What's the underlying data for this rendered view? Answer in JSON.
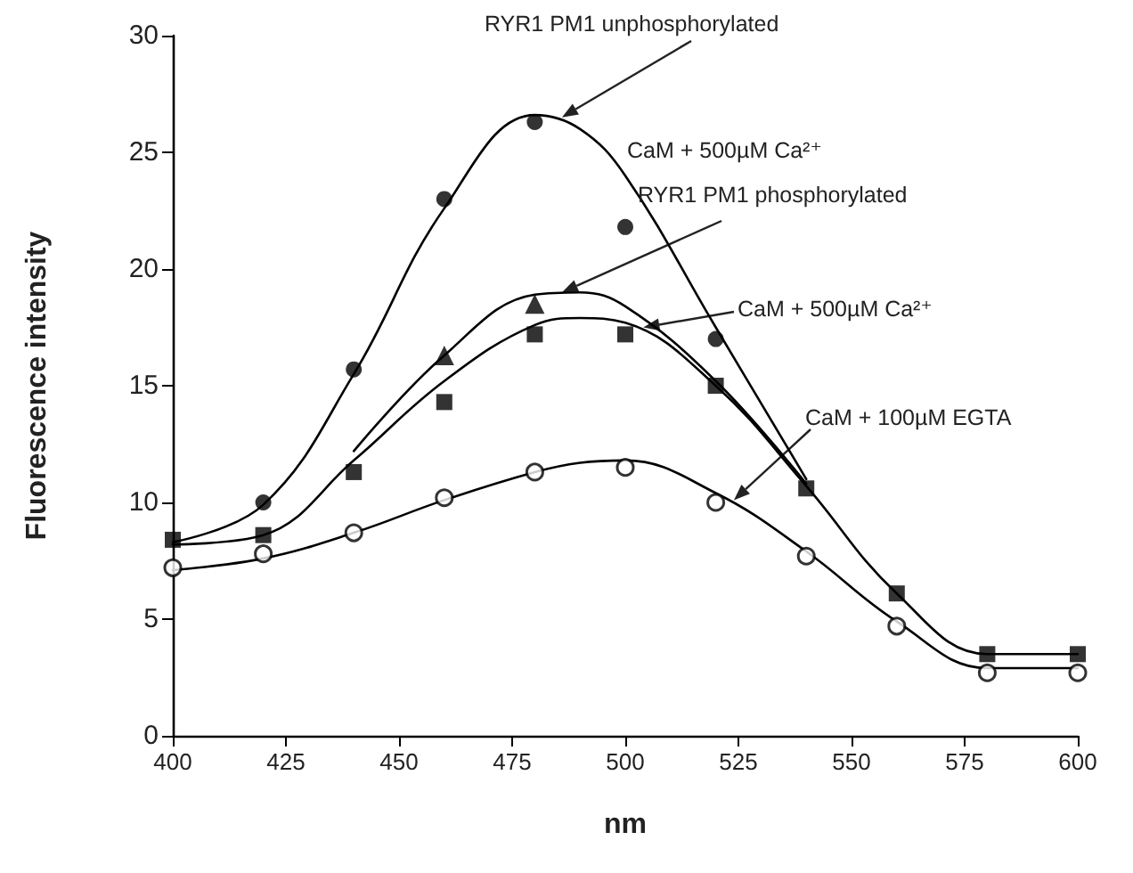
{
  "chart_data": {
    "type": "line",
    "xlabel": "nm",
    "ylabel": "Fluorescence intensity",
    "x": [
      400,
      420,
      440,
      460,
      480,
      500,
      520,
      540,
      560,
      580,
      600
    ],
    "xlim": [
      400,
      600
    ],
    "xticks": [
      400,
      425,
      450,
      475,
      500,
      525,
      550,
      575,
      600
    ],
    "ylim": [
      0,
      30
    ],
    "yticks": [
      0,
      5,
      10,
      15,
      20,
      25,
      30
    ],
    "grid": false,
    "series": [
      {
        "marker": "none",
        "color": "#000000",
        "x": [
          400,
          420,
          440,
          460,
          480,
          490,
          500,
          520,
          540
        ],
        "values": [
          8.3,
          9.9,
          15.5,
          22.6,
          26.6,
          26.0,
          24.0,
          17.5,
          11.0
        ]
      },
      {
        "marker": "none",
        "color": "#000000",
        "x": [
          440,
          460,
          480,
          490,
          500,
          520,
          540
        ],
        "values": [
          12.2,
          16.3,
          18.9,
          19.0,
          18.4,
          15.2,
          10.8
        ]
      },
      {
        "marker": "none",
        "color": "#000000",
        "x": [
          400,
          420,
          440,
          460,
          480,
          490,
          500,
          520,
          540,
          560,
          580,
          600
        ],
        "values": [
          8.2,
          8.6,
          11.8,
          15.2,
          17.6,
          17.9,
          17.7,
          15.0,
          10.7,
          6.1,
          3.5,
          3.5
        ]
      },
      {
        "marker": "none",
        "color": "#000000",
        "x": [
          400,
          420,
          440,
          460,
          480,
          490,
          500,
          520,
          540,
          560,
          580,
          600
        ],
        "values": [
          7.1,
          7.6,
          8.7,
          10.1,
          11.3,
          11.7,
          11.8,
          10.4,
          7.9,
          4.9,
          2.9,
          2.9
        ]
      },
      {
        "type": "scatter",
        "marker": "circle",
        "color": "#000000",
        "values": [
          null,
          10.0,
          15.7,
          23.0,
          26.3,
          21.8,
          17.0,
          null,
          null,
          null,
          null
        ]
      },
      {
        "type": "scatter",
        "marker": "triangle",
        "color": "#000000",
        "values": [
          null,
          null,
          null,
          16.3,
          18.5,
          null,
          null,
          null,
          null,
          null,
          null
        ]
      },
      {
        "type": "scatter",
        "marker": "square",
        "color": "#000000",
        "values": [
          8.4,
          8.6,
          11.3,
          14.3,
          17.2,
          17.2,
          15.0,
          10.6,
          6.1,
          3.5,
          3.5
        ]
      },
      {
        "type": "scatter",
        "marker": "circle",
        "color": "#000000",
        "values": [
          7.2,
          7.8,
          8.7,
          10.2,
          11.3,
          11.5,
          10.0,
          7.7,
          4.7,
          2.7,
          2.7
        ]
      }
    ],
    "annotations": [
      {
        "text": "RYR1 PM1 unphosphorylated",
        "x": 486,
        "y": 26.5
      },
      "CaM + 500µM Ca²⁺",
      {
        "text": "RYR1 PM1 phosphorylated",
        "x": 486,
        "y": 19.0
      },
      {
        "text": "CaM + 500µM Ca²⁺",
        "x": 504,
        "y": 17.5
      },
      {
        "text": "CaM + 100µM EGTA",
        "x": 524,
        "y": 10.1
      }
    ]
  }
}
